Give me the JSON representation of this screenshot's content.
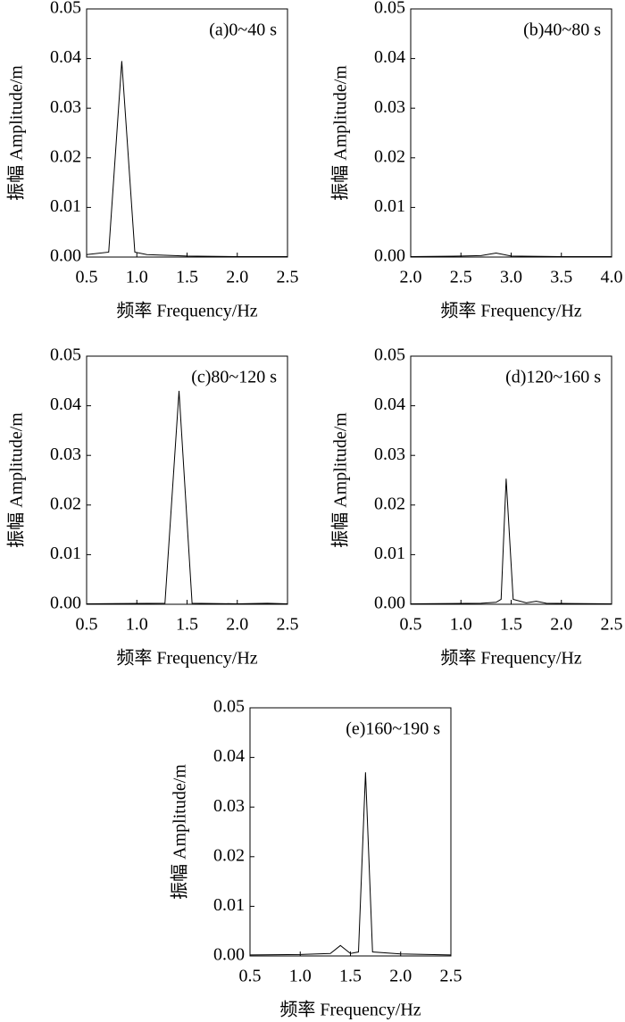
{
  "chart_data": [
    {
      "type": "line",
      "annotation": "(a)0~40 s",
      "xlabel": "频率 Frequency/Hz",
      "ylabel": "振幅 Amplitude/m",
      "color": "#000000",
      "x": [
        0.5,
        0.72,
        0.85,
        0.98,
        1.1,
        1.5,
        2.0,
        2.5
      ],
      "values": [
        0.0005,
        0.001,
        0.0395,
        0.001,
        0.0005,
        0.0002,
        0.0001,
        0.0001
      ],
      "xlim": [
        0.5,
        2.5
      ],
      "xticks": [
        0.5,
        {
          "value": 1.0,
          "label": "1.0"
        },
        1.5,
        {
          "value": 2.0,
          "label": "2.0"
        },
        2.5
      ],
      "ylim": [
        0,
        0.05
      ],
      "yticks": [
        {
          "value": 0,
          "label": "0.00"
        },
        0.01,
        0.02,
        0.03,
        0.04,
        0.05
      ]
    },
    {
      "type": "line",
      "annotation": "(b)40~80 s",
      "xlabel": "频率 Frequency/Hz",
      "ylabel": "振幅 Amplitude/m",
      "color": "#000000",
      "x": [
        2.0,
        2.5,
        2.7,
        2.85,
        3.0,
        3.5,
        4.0
      ],
      "values": [
        0.0001,
        0.0002,
        0.0003,
        0.0008,
        0.0002,
        0.0001,
        0.0001
      ],
      "xlim": [
        2.0,
        4.0
      ],
      "xticks": [
        {
          "value": 2.0,
          "label": "2.0"
        },
        2.5,
        {
          "value": 3.0,
          "label": "3.0"
        },
        3.5,
        {
          "value": 4.0,
          "label": "4.0"
        }
      ],
      "ylim": [
        0,
        0.05
      ],
      "yticks": [
        {
          "value": 0,
          "label": "0.00"
        },
        0.01,
        0.02,
        0.03,
        0.04,
        0.05
      ]
    },
    {
      "type": "line",
      "annotation": "(c)80~120 s",
      "xlabel": "频率 Frequency/Hz",
      "ylabel": "振幅 Amplitude/m",
      "color": "#000000",
      "x": [
        0.5,
        1.28,
        1.42,
        1.55,
        2.0,
        2.3,
        2.5
      ],
      "values": [
        0.0001,
        0.0002,
        0.043,
        0.0002,
        0.0001,
        0.0002,
        0.0001
      ],
      "xlim": [
        0.5,
        2.5
      ],
      "xticks": [
        0.5,
        {
          "value": 1.0,
          "label": "1.0"
        },
        1.5,
        {
          "value": 2.0,
          "label": "2.0"
        },
        2.5
      ],
      "ylim": [
        0,
        0.05
      ],
      "yticks": [
        {
          "value": 0,
          "label": "0.00"
        },
        0.01,
        0.02,
        0.03,
        0.04,
        0.05
      ]
    },
    {
      "type": "line",
      "annotation": "(d)120~160 s",
      "xlabel": "频率 Frequency/Hz",
      "ylabel": "振幅 Amplitude/m",
      "color": "#000000",
      "x": [
        0.5,
        1.2,
        1.35,
        1.4,
        1.45,
        1.52,
        1.65,
        1.75,
        1.85,
        2.5
      ],
      "values": [
        0.0001,
        0.0002,
        0.0004,
        0.001,
        0.0253,
        0.001,
        0.0003,
        0.0006,
        0.0002,
        0.0001
      ],
      "xlim": [
        0.5,
        2.5
      ],
      "xticks": [
        0.5,
        {
          "value": 1.0,
          "label": "1.0"
        },
        1.5,
        {
          "value": 2.0,
          "label": "2.0"
        },
        2.5
      ],
      "ylim": [
        0,
        0.05
      ],
      "yticks": [
        {
          "value": 0,
          "label": "0.00"
        },
        0.01,
        0.02,
        0.03,
        0.04,
        0.05
      ]
    },
    {
      "type": "line",
      "annotation": "(e)160~190 s",
      "xlabel": "频率 Frequency/Hz",
      "ylabel": "振幅 Amplitude/m",
      "color": "#000000",
      "x": [
        0.5,
        1.0,
        1.3,
        1.4,
        1.5,
        1.58,
        1.65,
        1.72,
        2.0,
        2.5
      ],
      "values": [
        0.0002,
        0.0003,
        0.0005,
        0.0021,
        0.0005,
        0.0008,
        0.037,
        0.0008,
        0.0004,
        0.0002
      ],
      "xlim": [
        0.5,
        2.5
      ],
      "xticks": [
        0.5,
        {
          "value": 1.0,
          "label": "1.0"
        },
        1.5,
        {
          "value": 2.0,
          "label": "2.0"
        },
        2.5
      ],
      "ylim": [
        0,
        0.05
      ],
      "yticks": [
        {
          "value": 0,
          "label": "0.00"
        },
        0.01,
        0.02,
        0.03,
        0.04,
        0.05
      ]
    }
  ]
}
